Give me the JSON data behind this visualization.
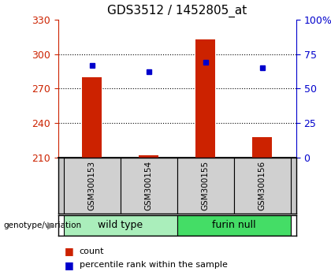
{
  "title": "GDS3512 / 1452805_at",
  "samples": [
    "GSM300153",
    "GSM300154",
    "GSM300155",
    "GSM300156"
  ],
  "count_values": [
    280,
    212,
    313,
    228
  ],
  "percentile_values": [
    67,
    62,
    69,
    65
  ],
  "ylim_left": [
    210,
    330
  ],
  "ylim_right": [
    0,
    100
  ],
  "yticks_left": [
    210,
    240,
    270,
    300,
    330
  ],
  "yticks_right": [
    0,
    25,
    50,
    75,
    100
  ],
  "bar_color": "#cc2200",
  "dot_color": "#0000cc",
  "groups": [
    {
      "label": "wild type",
      "indices": [
        0,
        1
      ],
      "color": "#aaeebb"
    },
    {
      "label": "furin null",
      "indices": [
        2,
        3
      ],
      "color": "#44dd66"
    }
  ],
  "group_label": "genotype/variation",
  "legend_items": [
    {
      "label": "count",
      "color": "#cc2200"
    },
    {
      "label": "percentile rank within the sample",
      "color": "#0000cc"
    }
  ],
  "bar_width": 0.35,
  "title_fontsize": 11,
  "axis_fontsize": 9,
  "sample_fontsize": 7.5,
  "group_fontsize": 9,
  "legend_fontsize": 8
}
